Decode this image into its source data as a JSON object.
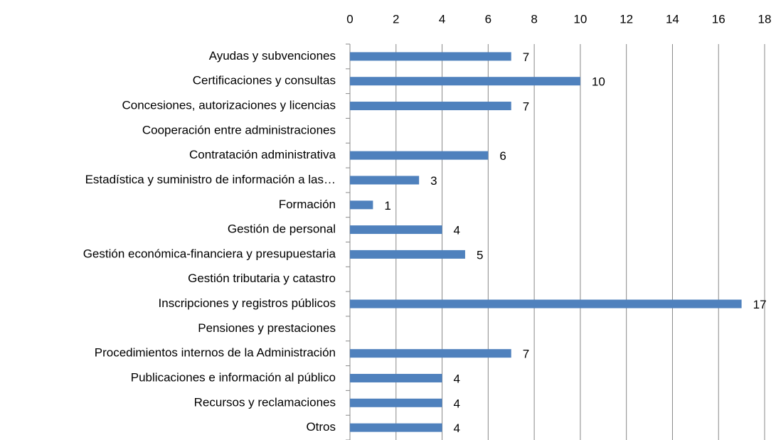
{
  "chart_data": {
    "type": "bar",
    "orientation": "horizontal",
    "categories": [
      "Ayudas y subvenciones",
      "Certificaciones y consultas",
      "Concesiones, autorizaciones y licencias",
      "Cooperación entre administraciones",
      "Contratación administrativa",
      "Estadística y suministro de información a las…",
      "Formación",
      "Gestión de personal",
      "Gestión económica-financiera y presupuestaria",
      "Gestión tributaria y catastro",
      "Inscripciones y registros públicos",
      "Pensiones y prestaciones",
      "Procedimientos internos de la Administración",
      "Publicaciones e información al público",
      "Recursos y reclamaciones",
      "Otros"
    ],
    "values": [
      7,
      10,
      7,
      null,
      6,
      3,
      1,
      4,
      5,
      null,
      17,
      null,
      7,
      4,
      4,
      4
    ],
    "color": "#4f81bd",
    "xlim": [
      0,
      18
    ],
    "xticks": [
      0,
      2,
      4,
      6,
      8,
      10,
      12,
      14,
      16,
      18
    ],
    "grid": true
  }
}
